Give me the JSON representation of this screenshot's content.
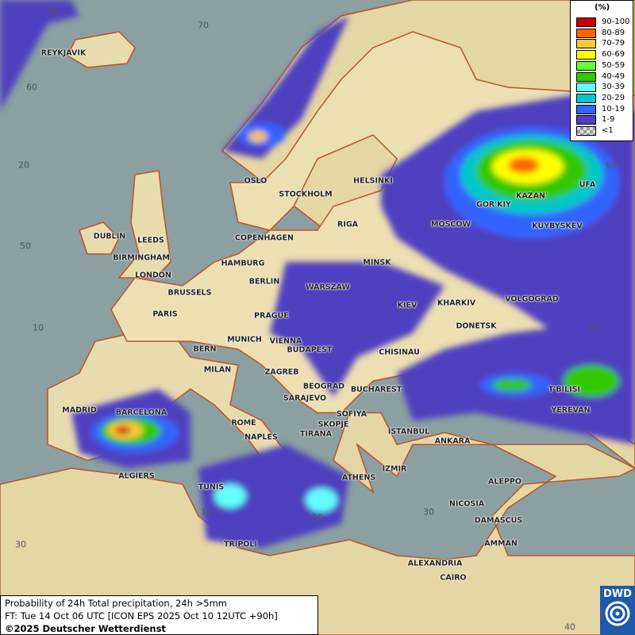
{
  "title": "Probability of 24h Total precipitation, 24h >5mm",
  "forecast_time": "FT: Tue 14 Oct 06 UTC [ICON EPS 2025 Oct 10 12UTC +90h]",
  "copyright": "©2025 Deutscher Wetterdienst",
  "logo": "DWD",
  "legend": {
    "unit": "(%)",
    "items": [
      {
        "label": "90-100",
        "color": "#c80000"
      },
      {
        "label": "80-89",
        "color": "#ff6400"
      },
      {
        "label": "70-79",
        "color": "#ffc83c"
      },
      {
        "label": "60-69",
        "color": "#ffff00"
      },
      {
        "label": "50-59",
        "color": "#64ff32"
      },
      {
        "label": "40-49",
        "color": "#32c800"
      },
      {
        "label": "30-39",
        "color": "#64ffff"
      },
      {
        "label": "20-29",
        "color": "#00c8c8"
      },
      {
        "label": "10-19",
        "color": "#3264ff"
      },
      {
        "label": "1-9",
        "color": "#5040c0"
      },
      {
        "label": "<1",
        "color": "checker"
      }
    ]
  },
  "grid_labels": [
    "30",
    "70",
    "60",
    "20",
    "50",
    "10",
    "10",
    "20",
    "30",
    "30",
    "40",
    "50",
    "60",
    "70"
  ],
  "cities": [
    "REYKJAVIK",
    "OSLO",
    "STOCKHOLM",
    "HELSINKI",
    "DUBLIN",
    "LEEDS",
    "BIRMINGHAM",
    "LONDON",
    "COPENHAGEN",
    "RIGA",
    "HAMBURG",
    "BERLIN",
    "MINSK",
    "MOSCOW",
    "GOR'KIY",
    "KAZAN'",
    "UFA",
    "KUYBYSKEV",
    "BRUSSELS",
    "WARSZAW",
    "KIEV",
    "KHARKIV",
    "VOLGOGRAD",
    "PARIS",
    "PRAGUE",
    "DONETSK",
    "MUNICH",
    "VIENNA",
    "BERN",
    "BUDAPEST",
    "CHISINAU",
    "MILAN",
    "ZAGREB",
    "BEOGRAD",
    "BUCHAREST",
    "T'BILISI",
    "MADRID",
    "BARCELONA",
    "SARAJEVO",
    "SOFIYA",
    "YEREVAN",
    "ROME",
    "SKOPJE",
    "ISTANBUL",
    "ANKARA",
    "NAPLES",
    "TIRANA",
    "ALGIERS",
    "IZMIR",
    "ATHENS",
    "ALEPPO",
    "TUNIS",
    "NICOSIA",
    "DAMASCUS",
    "AMMAN",
    "TRIPOLI",
    "ALEXANDRIA",
    "CAIRO"
  ]
}
